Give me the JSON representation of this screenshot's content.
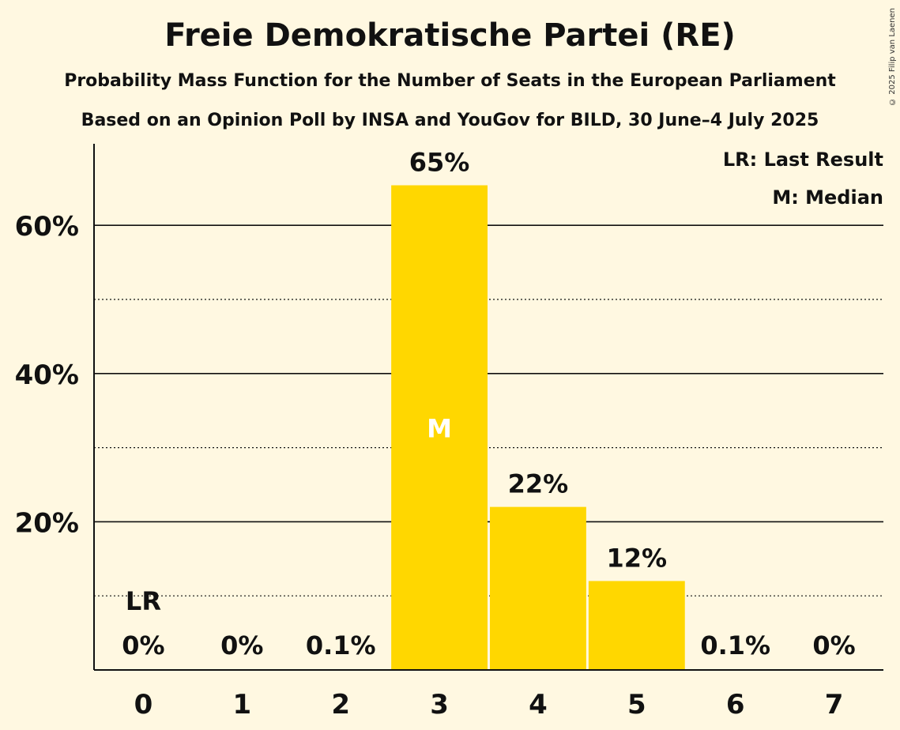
{
  "title": "Freie Demokratische Partei (RE)",
  "subtitle1": "Probability Mass Function for the Number of Seats in the European Parliament",
  "subtitle2": "Based on an Opinion Poll by INSA and YouGov for BILD, 30 June–4 July 2025",
  "copyright": "© 2025 Filip van Laenen",
  "legend": [
    "LR: Last Result",
    "M: Median"
  ],
  "colors": {
    "background": "#fff8e1",
    "bar": "#ffd700",
    "text": "#111111"
  },
  "chart_data": {
    "type": "bar",
    "categories": [
      "0",
      "1",
      "2",
      "3",
      "4",
      "5",
      "6",
      "7"
    ],
    "values": [
      0,
      0,
      0.1,
      65.4,
      22.0,
      12.0,
      0.1,
      0
    ],
    "value_labels": [
      "0%",
      "0%",
      "0.1%",
      "65%",
      "22%",
      "12%",
      "0.1%",
      "0%"
    ],
    "ylim": [
      0,
      71
    ],
    "yticks": [
      20,
      40,
      60
    ],
    "ytick_labels": [
      "20%",
      "40%",
      "60%"
    ],
    "minor_gridlines": [
      10,
      30,
      50
    ],
    "last_result_category": "0",
    "last_result_label": "LR",
    "median_category": "3",
    "median_label": "M",
    "legend_position": "top-right"
  }
}
